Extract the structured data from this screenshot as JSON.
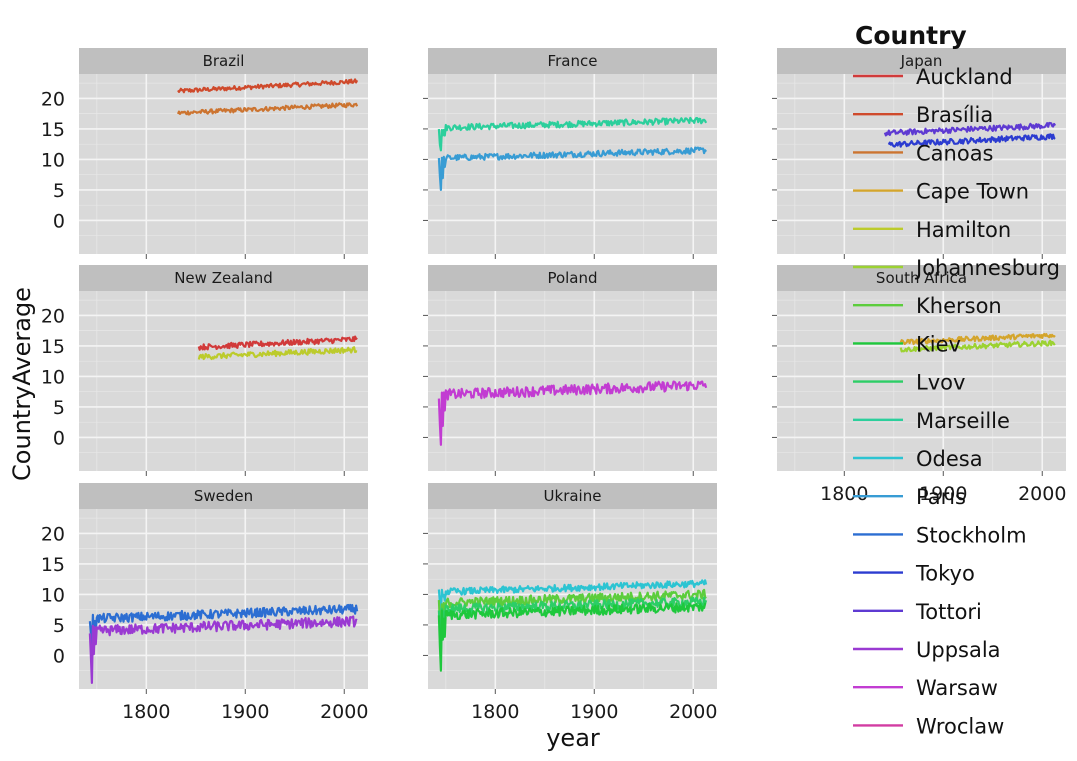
{
  "chart_data": {
    "type": "line",
    "facet_by": "Country",
    "xlabel": "year",
    "ylabel": "CountryAverage",
    "x_ticks": [
      1800,
      1900,
      2000
    ],
    "y_ticks": [
      0,
      5,
      10,
      15,
      20
    ],
    "xlim": [
      1732,
      2024
    ],
    "ylim": [
      -5.5,
      24
    ],
    "grid": true,
    "legend": {
      "title": "Country",
      "position": "right",
      "entries": [
        {
          "label": "Auckland",
          "color": "#d13a3a"
        },
        {
          "label": "Brasília",
          "color": "#cf4a2c"
        },
        {
          "label": "Canoas",
          "color": "#cc7430"
        },
        {
          "label": "Cape Town",
          "color": "#d4a52c"
        },
        {
          "label": "Hamilton",
          "color": "#bccb2c"
        },
        {
          "label": "Johannesburg",
          "color": "#9cd232"
        },
        {
          "label": "Kherson",
          "color": "#5ccd3c"
        },
        {
          "label": "Kiev",
          "color": "#1ec83c"
        },
        {
          "label": "Lvov",
          "color": "#2cce66"
        },
        {
          "label": "Marseille",
          "color": "#2ccf9c"
        },
        {
          "label": "Odesa",
          "color": "#2cc4d2"
        },
        {
          "label": "Paris",
          "color": "#389cd4"
        },
        {
          "label": "Stockholm",
          "color": "#2c6ed2"
        },
        {
          "label": "Tokyo",
          "color": "#2c3cd0"
        },
        {
          "label": "Tottori",
          "color": "#5e3ad2"
        },
        {
          "label": "Uppsala",
          "color": "#9a3ad2"
        },
        {
          "label": "Warsaw",
          "color": "#c23cd2"
        },
        {
          "label": "Wroclaw",
          "color": "#d23ca2"
        }
      ]
    },
    "panels": [
      {
        "name": "Brazil",
        "series": [
          {
            "name": "Brasília",
            "start": 1832,
            "end": 2013,
            "base_start": 21.2,
            "base_end": 22.8,
            "noise": 0.35
          },
          {
            "name": "Canoas",
            "start": 1832,
            "end": 2013,
            "base_start": 17.6,
            "base_end": 19.0,
            "noise": 0.35
          }
        ]
      },
      {
        "name": "France",
        "series": [
          {
            "name": "Marseille",
            "start": 1743,
            "end": 2013,
            "base_start": 15.2,
            "base_end": 16.4,
            "noise": 0.5,
            "dip": 11.5
          },
          {
            "name": "Paris",
            "start": 1743,
            "end": 2013,
            "base_start": 10.2,
            "base_end": 11.5,
            "noise": 0.5,
            "dip": 5.0
          }
        ]
      },
      {
        "name": "Japan",
        "series": [
          {
            "name": "Tottori",
            "start": 1841,
            "end": 2013,
            "base_start": 14.3,
            "base_end": 15.6,
            "noise": 0.45
          },
          {
            "name": "Tokyo",
            "start": 1845,
            "end": 2013,
            "base_start": 12.4,
            "base_end": 13.8,
            "noise": 0.45
          }
        ]
      },
      {
        "name": "New Zealand",
        "series": [
          {
            "name": "Auckland",
            "start": 1853,
            "end": 2013,
            "base_start": 14.8,
            "base_end": 16.1,
            "noise": 0.45
          },
          {
            "name": "Hamilton",
            "start": 1853,
            "end": 2013,
            "base_start": 13.2,
            "base_end": 14.4,
            "noise": 0.45
          }
        ]
      },
      {
        "name": "Poland",
        "series": [
          {
            "name": "Warsaw",
            "start": 1743,
            "end": 2013,
            "base_start": 7.0,
            "base_end": 8.6,
            "noise": 0.85,
            "dip": -1.2
          }
        ]
      },
      {
        "name": "South Africa",
        "series": [
          {
            "name": "Cape Town",
            "start": 1857,
            "end": 2013,
            "base_start": 15.6,
            "base_end": 16.8,
            "noise": 0.4
          },
          {
            "name": "Johannesburg",
            "start": 1857,
            "end": 2013,
            "base_start": 14.4,
            "base_end": 15.5,
            "noise": 0.4
          }
        ]
      },
      {
        "name": "Sweden",
        "series": [
          {
            "name": "Stockholm",
            "start": 1743,
            "end": 2013,
            "base_start": 6.0,
            "base_end": 7.6,
            "noise": 0.75,
            "dip": 2.0
          },
          {
            "name": "Uppsala",
            "start": 1743,
            "end": 2013,
            "base_start": 4.0,
            "base_end": 5.6,
            "noise": 0.85,
            "dip": -4.5
          }
        ]
      },
      {
        "name": "Ukraine",
        "series": [
          {
            "name": "Odesa",
            "start": 1743,
            "end": 2013,
            "base_start": 10.4,
            "base_end": 11.8,
            "noise": 0.55,
            "dip": 7.0
          },
          {
            "name": "Kherson",
            "start": 1743,
            "end": 2013,
            "base_start": 8.6,
            "base_end": 10.0,
            "noise": 0.75,
            "dip": 2.0
          },
          {
            "name": "Lvov",
            "start": 1743,
            "end": 2013,
            "base_start": 7.6,
            "base_end": 8.8,
            "noise": 0.75,
            "dip": 0.5
          },
          {
            "name": "Kiev",
            "start": 1743,
            "end": 2013,
            "base_start": 6.6,
            "base_end": 8.0,
            "noise": 0.8,
            "dip": -2.5
          }
        ]
      }
    ]
  }
}
